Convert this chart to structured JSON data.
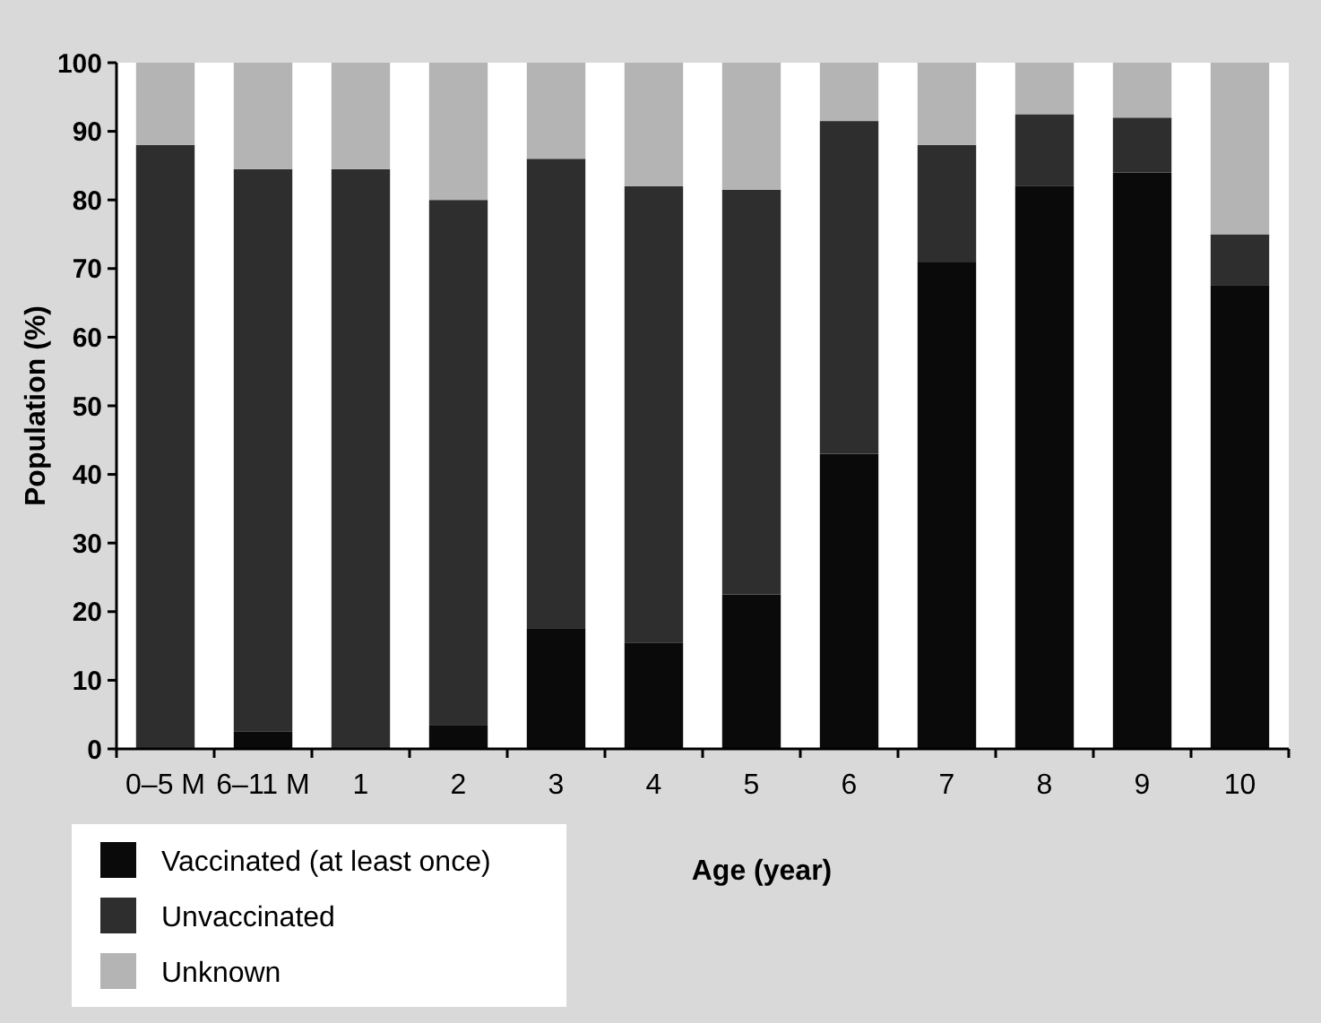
{
  "chart_data": {
    "type": "bar",
    "stacked": true,
    "xlabel": "Age (year)",
    "ylabel": "Population (%)",
    "categories": [
      "0–5 M",
      "6–11 M",
      "1",
      "2",
      "3",
      "4",
      "5",
      "6",
      "7",
      "8",
      "9",
      "10"
    ],
    "series": [
      {
        "name": "Vaccinated (at least once)",
        "color": "#0a0a0a",
        "values": [
          0,
          2.5,
          0,
          3.5,
          17.5,
          15.5,
          22.5,
          43,
          71,
          82,
          84,
          67.5
        ]
      },
      {
        "name": "Unvaccinated",
        "color": "#2e2e2e",
        "values": [
          88,
          82,
          84.5,
          76.5,
          68.5,
          66.5,
          59,
          48.5,
          17,
          10.5,
          8,
          7.5
        ]
      },
      {
        "name": "Unknown",
        "color": "#b4b4b4",
        "values": [
          12,
          15.5,
          15.5,
          20,
          14,
          18,
          18.5,
          8.5,
          12,
          7.5,
          8,
          25
        ]
      }
    ],
    "ylim": [
      0,
      100
    ],
    "yticks": [
      0,
      10,
      20,
      30,
      40,
      50,
      60,
      70,
      80,
      90,
      100
    ],
    "grid": false,
    "legend": "bottom left"
  }
}
